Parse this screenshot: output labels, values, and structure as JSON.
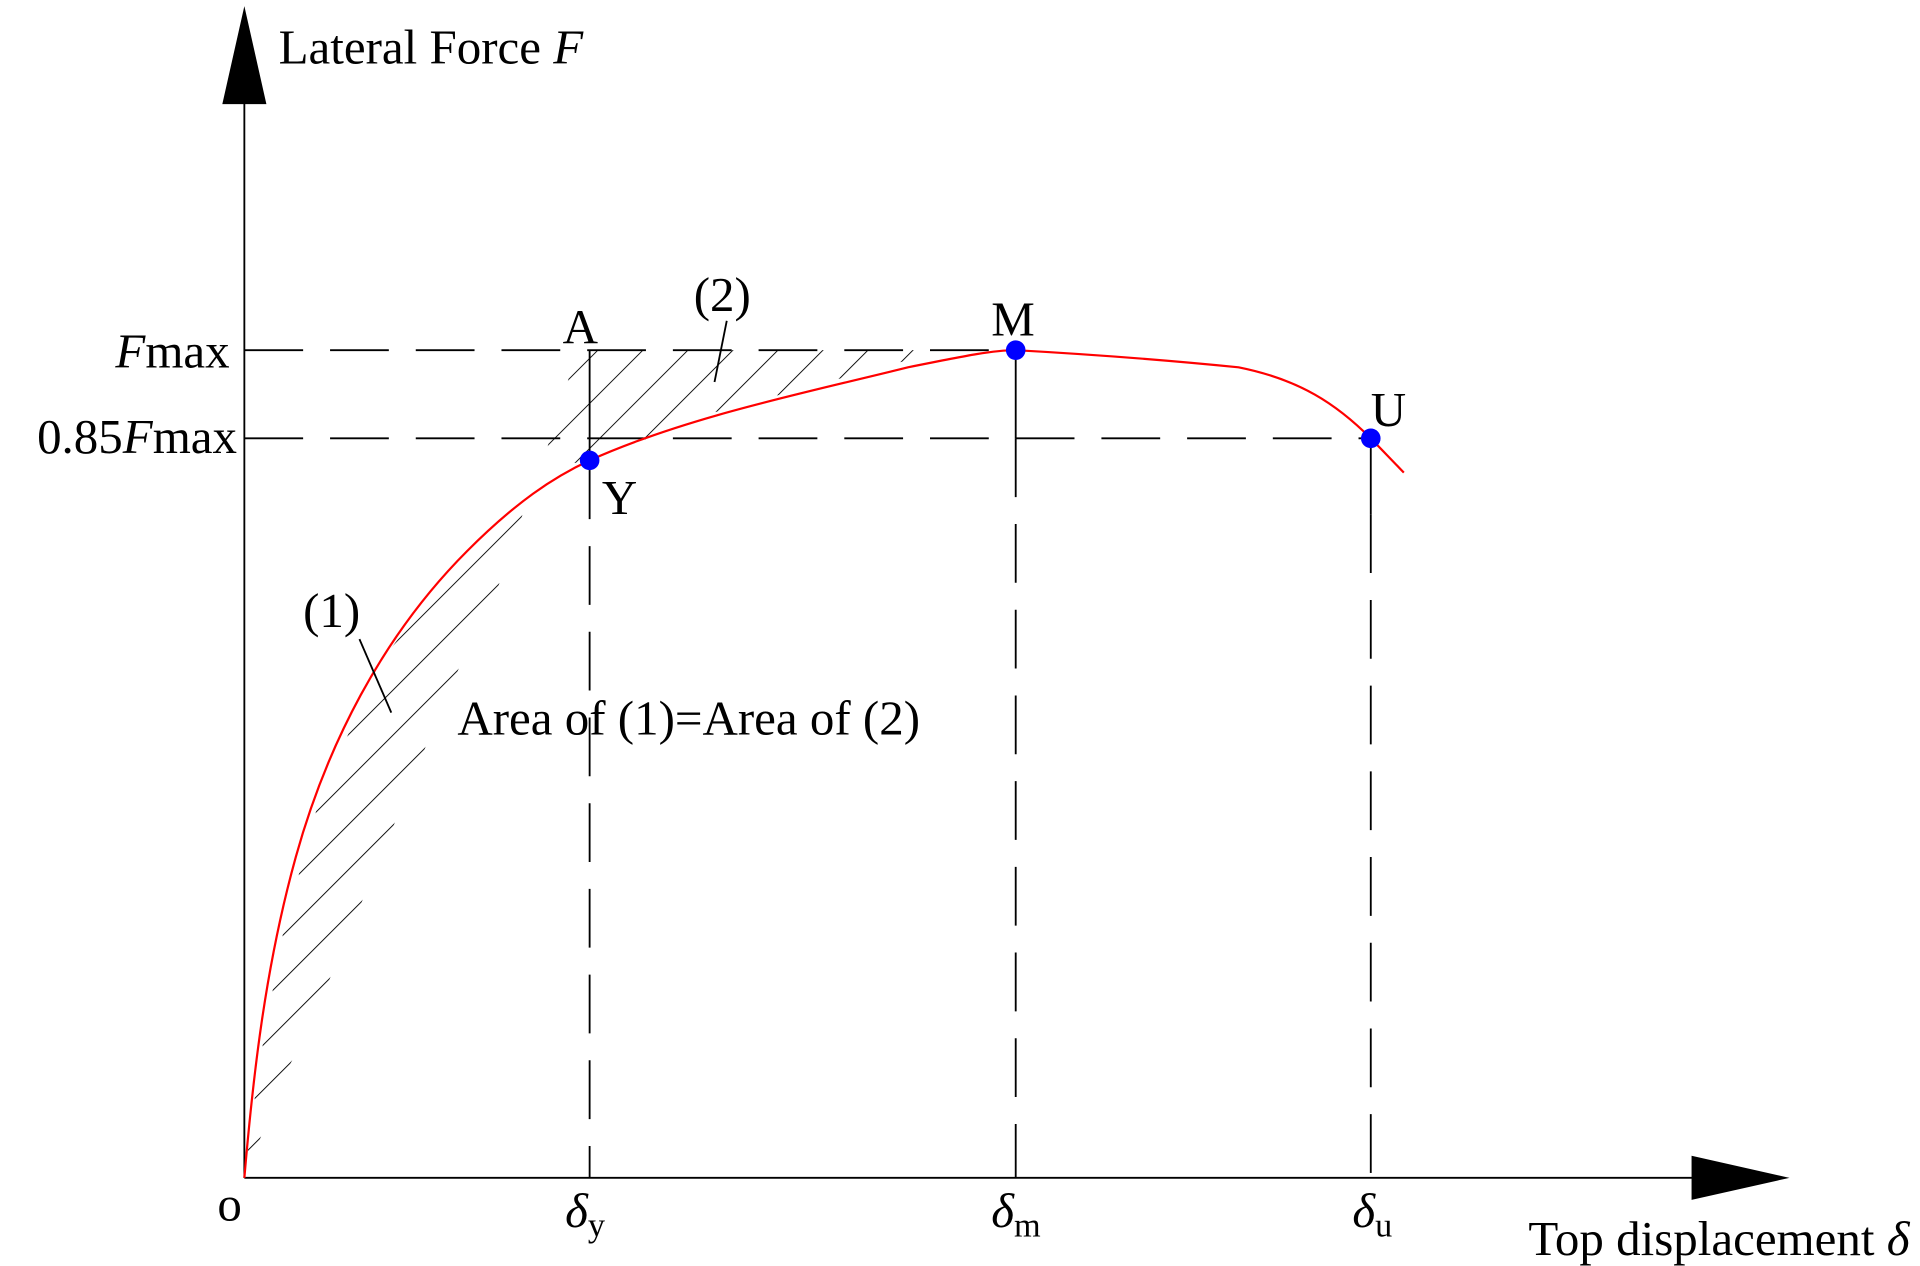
{
  "axes": {
    "y_label": {
      "text": "Lateral Force",
      "symbol": "F"
    },
    "x_label": {
      "text": "Top displacement",
      "symbol": "δ"
    },
    "origin": "o"
  },
  "y_ticks": [
    {
      "symbol": "F",
      "suffix": "max"
    },
    {
      "prefix": "0.85",
      "symbol": "F",
      "suffix": "max"
    }
  ],
  "x_ticks": [
    {
      "symbol": "δ",
      "sub": "y"
    },
    {
      "symbol": "δ",
      "sub": "m"
    },
    {
      "symbol": "δ",
      "sub": "u"
    }
  ],
  "points": [
    {
      "label": "A"
    },
    {
      "label": "Y"
    },
    {
      "label": "M"
    },
    {
      "label": "U"
    }
  ],
  "regions": [
    {
      "label": "(1)"
    },
    {
      "label": "(2)"
    }
  ],
  "note": "Area of (1)=Area of (2)"
}
